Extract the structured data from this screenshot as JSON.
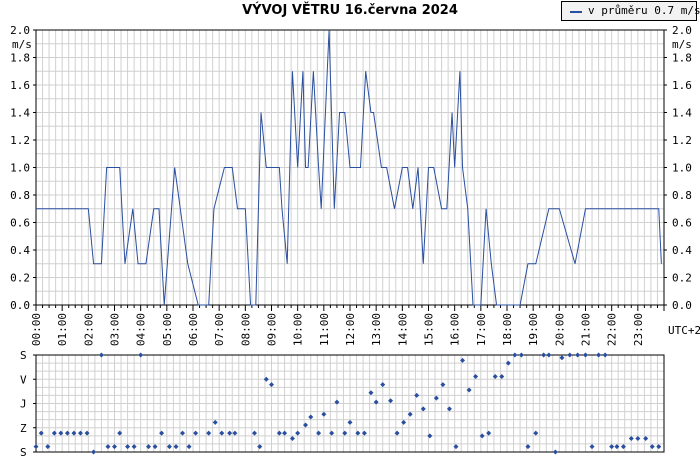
{
  "title": "VÝVOJ VĚTRU  16.června 2024",
  "legend": {
    "label": "v průměru 0.7 m/s",
    "color": "#2a4fa0"
  },
  "colors": {
    "line": "#2a4fa0",
    "grid": "#d0d0d0",
    "frame": "#000000",
    "points": "#2a4fa0"
  },
  "chart_data": [
    {
      "type": "line",
      "title": "VÝVOJ VĚTRU  16.června 2024",
      "unit_label": "m/s",
      "xlabel": "UTC+2",
      "ylim": [
        0,
        2.0
      ],
      "y_ticks": [
        "0.0",
        "0.2",
        "0.4",
        "0.6",
        "0.8",
        "1.0",
        "1.2",
        "1.4",
        "1.6",
        "1.8",
        "2.0"
      ],
      "y_ticks_right": [
        "0.0",
        "0.2",
        "0.4",
        "0.6",
        "0.8",
        "1.0",
        "1.2",
        "1.4",
        "1.6",
        "1.8",
        "2.0"
      ],
      "right_unit_label": "m/s",
      "x_ticks": [
        "00:00",
        "01:00",
        "02:00",
        "03:00",
        "04:00",
        "05:00",
        "06:00",
        "07:00",
        "08:00",
        "09:00",
        "10:00",
        "11:00",
        "12:00",
        "13:00",
        "14:00",
        "15:00",
        "16:00",
        "17:00",
        "18:00",
        "19:00",
        "20:00",
        "21:00",
        "22:00",
        "23:00"
      ],
      "grid": true,
      "legend_position": "top-right",
      "series": [
        {
          "name": "v průměru 0.7 m/s",
          "x_hours": [
            0,
            2,
            2.2,
            2.5,
            2.7,
            3.2,
            3.4,
            3.7,
            3.9,
            4.2,
            4.5,
            4.7,
            4.9,
            5.3,
            5.8,
            6.2,
            6.6,
            6.8,
            7.2,
            7.5,
            7.7,
            8.0,
            8.2,
            8.4,
            8.6,
            8.8,
            9.3,
            9.4,
            9.6,
            9.8,
            10.0,
            10.2,
            10.3,
            10.4,
            10.6,
            10.8,
            10.9,
            11.2,
            11.4,
            11.6,
            11.8,
            12.0,
            12.2,
            12.3,
            12.4,
            12.6,
            12.8,
            12.9,
            13.2,
            13.4,
            13.7,
            14.0,
            14.2,
            14.4,
            14.6,
            14.8,
            15.0,
            15.2,
            15.5,
            15.7,
            15.9,
            16.0,
            16.2,
            16.3,
            16.5,
            16.7,
            16.8,
            17.0,
            17.2,
            17.4,
            17.6,
            17.8,
            18.1,
            18.5,
            18.8,
            19.1,
            19.6,
            20.0,
            20.6,
            21.0,
            21.3,
            21.5,
            21.7,
            22.0,
            22.2,
            22.6,
            23.6,
            23.8,
            23.9
          ],
          "values": [
            0.7,
            0.7,
            0.3,
            0.3,
            1.0,
            1.0,
            0.3,
            0.7,
            0.3,
            0.3,
            0.7,
            0.7,
            0.0,
            1.0,
            0.3,
            0.0,
            0.0,
            0.7,
            1.0,
            1.0,
            0.7,
            0.7,
            0.0,
            0.0,
            1.4,
            1.0,
            1.0,
            0.7,
            0.3,
            1.7,
            1.0,
            1.7,
            1.0,
            1.0,
            1.7,
            1.0,
            0.7,
            2.0,
            0.7,
            1.4,
            1.4,
            1.0,
            1.0,
            1.0,
            1.0,
            1.7,
            1.4,
            1.4,
            1.0,
            1.0,
            0.7,
            1.0,
            1.0,
            0.7,
            1.0,
            0.3,
            1.0,
            1.0,
            0.7,
            0.7,
            1.4,
            1.0,
            1.7,
            1.0,
            0.7,
            0.0,
            0.0,
            0.0,
            0.7,
            0.3,
            0.0,
            0.0,
            0.0,
            0.0,
            0.3,
            0.3,
            0.7,
            0.7,
            0.3,
            0.7,
            0.7,
            0.7,
            0.7,
            0.7,
            0.7,
            0.7,
            0.7,
            0.7,
            0.3
          ]
        }
      ]
    },
    {
      "type": "scatter",
      "y_ticks": [
        "S",
        "V",
        "J",
        "Z",
        "S"
      ],
      "x_ticks": [
        "00:00",
        "01:00",
        "02:00",
        "03:00",
        "04:00",
        "05:00",
        "06:00",
        "07:00",
        "08:00",
        "09:00",
        "10:00",
        "11:00",
        "12:00",
        "13:00",
        "14:00",
        "15:00",
        "16:00",
        "17:00",
        "18:00",
        "19:00",
        "20:00",
        "21:00",
        "22:00",
        "23:00"
      ],
      "y_unit": "direction degrees (0 = S, 90 = V, 180 = J, 270 = Z, 360 = S)",
      "grid": true,
      "series": [
        {
          "x_hours": [
            0.0,
            0.2,
            0.45,
            0.7,
            0.95,
            1.2,
            1.45,
            1.7,
            1.95,
            2.2,
            2.5,
            2.75,
            3.0,
            3.2,
            3.5,
            3.75,
            4.0,
            4.3,
            4.55,
            4.8,
            5.1,
            5.35,
            5.6,
            5.85,
            6.1,
            6.6,
            6.85,
            7.1,
            7.4,
            7.6,
            8.35,
            8.55,
            8.8,
            9.0,
            9.3,
            9.5,
            9.8,
            10.0,
            10.3,
            10.5,
            10.8,
            11.0,
            11.3,
            11.5,
            11.8,
            12.0,
            12.3,
            12.55,
            12.8,
            13.0,
            13.25,
            13.55,
            13.8,
            14.05,
            14.3,
            14.55,
            14.8,
            15.05,
            15.3,
            15.55,
            15.8,
            16.05,
            16.3,
            16.55,
            16.8,
            17.05,
            17.3,
            17.55,
            17.8,
            18.05,
            18.3,
            18.55,
            18.8,
            19.1,
            19.4,
            19.6,
            19.85,
            20.1,
            20.4,
            20.7,
            21.0,
            21.25,
            21.5,
            21.75,
            22.0,
            22.2,
            22.45,
            22.75,
            23.0,
            23.3,
            23.55,
            23.8
          ],
          "values": [
            340,
            290,
            340,
            290,
            290,
            290,
            290,
            290,
            290,
            360,
            0,
            340,
            340,
            290,
            340,
            340,
            0,
            340,
            340,
            290,
            340,
            340,
            290,
            340,
            290,
            290,
            250,
            290,
            290,
            290,
            290,
            340,
            90,
            110,
            290,
            290,
            310,
            290,
            260,
            230,
            290,
            220,
            290,
            175,
            290,
            250,
            290,
            290,
            140,
            175,
            110,
            170,
            290,
            250,
            220,
            150,
            200,
            300,
            160,
            110,
            200,
            340,
            20,
            130,
            80,
            300,
            290,
            80,
            80,
            30,
            0,
            0,
            340,
            290,
            0,
            0,
            360,
            10,
            0,
            0,
            0,
            340,
            0,
            0,
            340,
            340,
            340,
            310,
            310,
            310,
            340,
            340
          ]
        }
      ]
    }
  ]
}
